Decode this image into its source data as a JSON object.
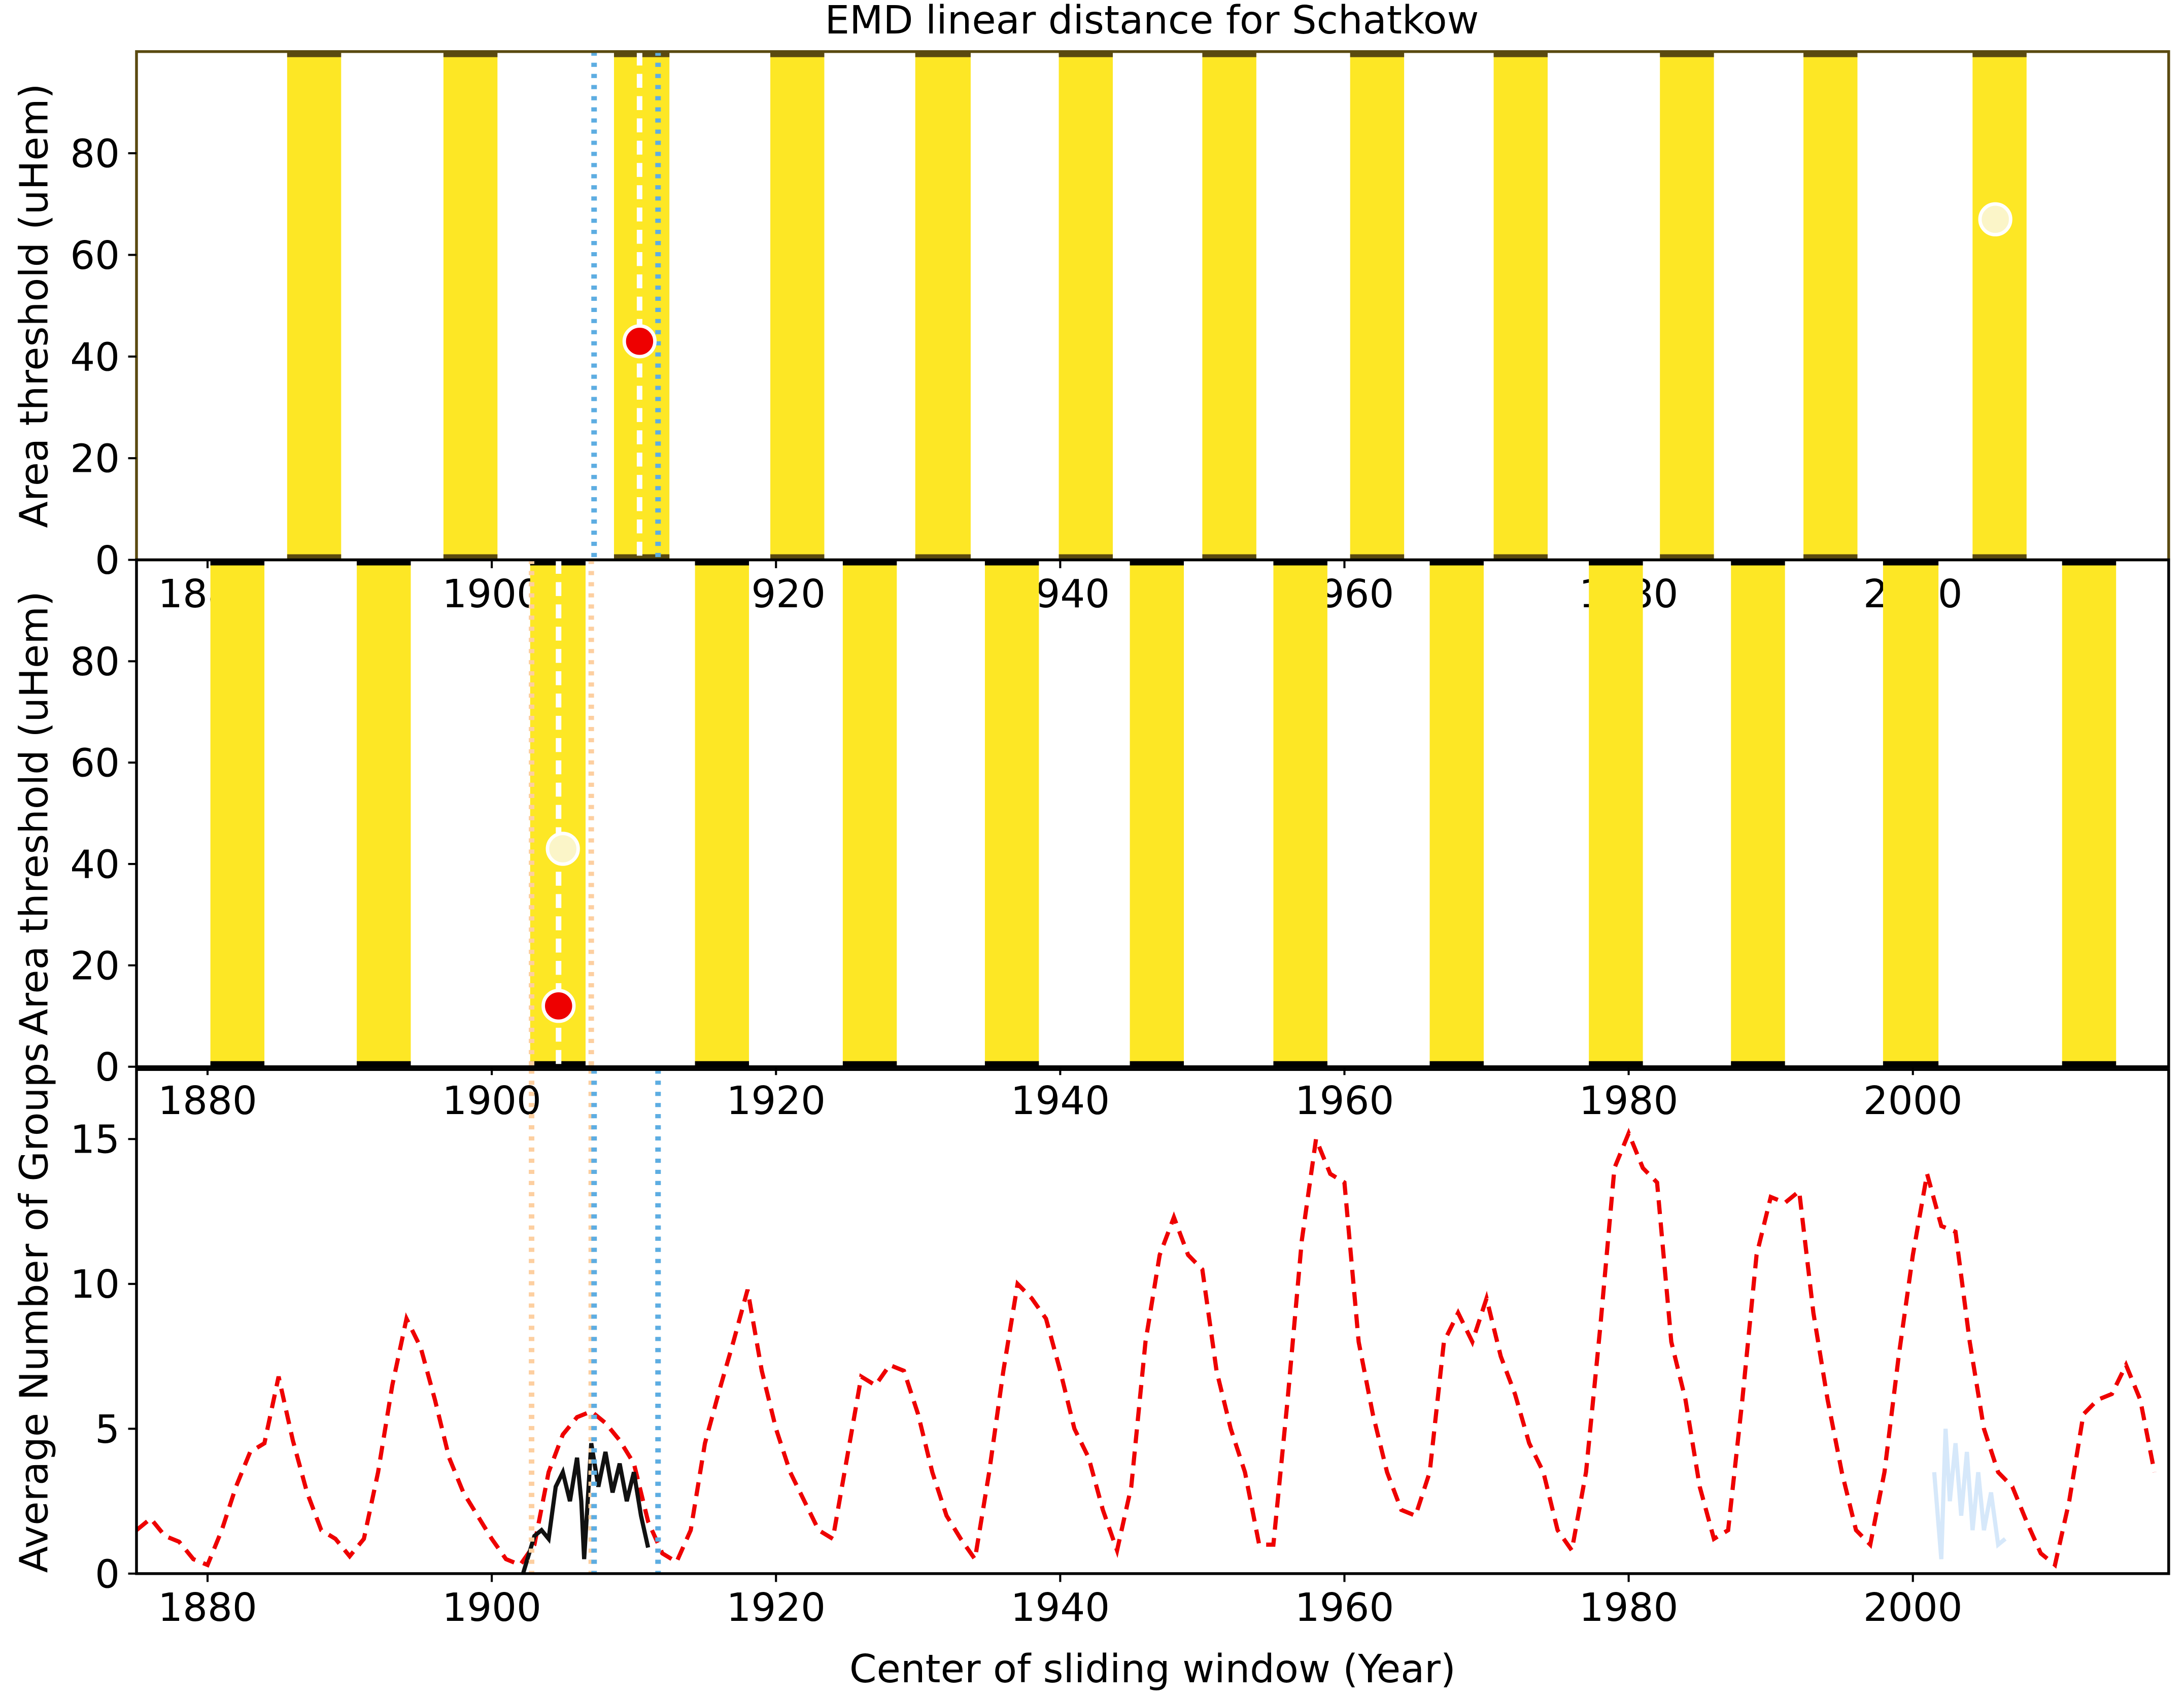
{
  "chart_data": [
    {
      "type": "band",
      "title": "EMD linear distance for Schatkow",
      "y_label": "Area threshold (uHem)",
      "xlim": [
        1875,
        2018
      ],
      "ylim": [
        0,
        100
      ],
      "xticks": [
        1880,
        1900,
        1920,
        1940,
        1960,
        1980,
        2000
      ],
      "yticks": [
        0,
        20,
        40,
        60,
        80
      ],
      "frame_color": "#5a4a10",
      "band_color": "#fde725",
      "bands": [
        [
          1885.6,
          1889.4
        ],
        [
          1896.6,
          1900.4
        ],
        [
          1908.6,
          1912.5
        ],
        [
          1919.6,
          1923.4
        ],
        [
          1929.8,
          1933.7
        ],
        [
          1939.9,
          1943.7
        ],
        [
          1950.0,
          1953.8
        ],
        [
          1960.4,
          1964.2
        ],
        [
          1970.5,
          1974.3
        ],
        [
          1982.2,
          1986.0
        ],
        [
          1992.3,
          1996.1
        ],
        [
          2004.2,
          2008.0
        ]
      ],
      "vlines": [
        {
          "x": 1907.2,
          "color": "#5dade2",
          "style": "dotted"
        },
        {
          "x": 1911.7,
          "color": "#5dade2",
          "style": "dotted"
        },
        {
          "x": 1910.4,
          "color": "#ffffff",
          "style": "dashed"
        }
      ],
      "points": [
        {
          "x": 1910.4,
          "y": 43,
          "color": "#ee0000"
        },
        {
          "x": 2005.8,
          "y": 67,
          "color": "#fbf5c8"
        }
      ]
    },
    {
      "type": "band",
      "y_label": "Area threshold (uHem)",
      "xlim": [
        1875,
        2018
      ],
      "ylim": [
        0,
        100
      ],
      "xticks": [
        1880,
        1900,
        1920,
        1940,
        1960,
        1980,
        2000
      ],
      "yticks": [
        0,
        20,
        40,
        60,
        80
      ],
      "frame_color": "#000000",
      "band_color": "#fde725",
      "bands": [
        [
          1880.2,
          1884.0
        ],
        [
          1890.5,
          1894.3
        ],
        [
          1902.7,
          1906.6
        ],
        [
          1914.3,
          1918.1
        ],
        [
          1924.7,
          1928.5
        ],
        [
          1934.7,
          1938.5
        ],
        [
          1944.9,
          1948.7
        ],
        [
          1955.0,
          1958.8
        ],
        [
          1966.0,
          1969.8
        ],
        [
          1977.2,
          1981.0
        ],
        [
          1987.2,
          1991.0
        ],
        [
          1997.9,
          2001.8
        ],
        [
          2010.5,
          2014.3
        ]
      ],
      "vlines": [
        {
          "x": 1902.8,
          "color": "#fdcfa0",
          "style": "dotted"
        },
        {
          "x": 1907.0,
          "color": "#fdcfa0",
          "style": "dotted"
        },
        {
          "x": 1904.7,
          "color": "#ffffff",
          "style": "dashed"
        }
      ],
      "points": [
        {
          "x": 1905.0,
          "y": 43,
          "color": "#fbf5c8"
        },
        {
          "x": 1904.7,
          "y": 12,
          "color": "#ee0000"
        }
      ]
    },
    {
      "type": "line",
      "x_label": "Center of sliding window (Year)",
      "y_label": "Average Number of Groups",
      "xlim": [
        1875,
        2018
      ],
      "ylim": [
        0,
        17.4
      ],
      "xticks": [
        1880,
        1900,
        1920,
        1940,
        1960,
        1980,
        2000
      ],
      "yticks": [
        0,
        5,
        10,
        15
      ],
      "frame_color": "#000000",
      "vlines": [
        {
          "x": 1902.8,
          "color": "#fdcfa0",
          "style": "dotted"
        },
        {
          "x": 1907.0,
          "color": "#fdcfa0",
          "style": "dotted"
        },
        {
          "x": 1907.2,
          "color": "#5dade2",
          "style": "dotted"
        },
        {
          "x": 1911.7,
          "color": "#5dade2",
          "style": "dotted"
        }
      ],
      "series": [
        {
          "color": "#ee0000",
          "style": "dashed",
          "x": [
            1875,
            1876,
            1877,
            1878,
            1879,
            1880,
            1881,
            1882,
            1883,
            1884,
            1885,
            1886,
            1887,
            1888,
            1889,
            1890,
            1891,
            1892,
            1893,
            1894,
            1895,
            1896,
            1897,
            1898,
            1899,
            1900,
            1901,
            1902,
            1903,
            1904,
            1905,
            1906,
            1907,
            1908,
            1909,
            1910,
            1911,
            1912,
            1913,
            1914,
            1915,
            1916,
            1917,
            1918,
            1919,
            1920,
            1921,
            1922,
            1923,
            1924,
            1925,
            1926,
            1927,
            1928,
            1929,
            1930,
            1931,
            1932,
            1933,
            1934,
            1935,
            1936,
            1937,
            1938,
            1939,
            1940,
            1941,
            1942,
            1943,
            1944,
            1945,
            1946,
            1947,
            1948,
            1949,
            1950,
            1951,
            1952,
            1953,
            1954,
            1955,
            1956,
            1957,
            1958,
            1959,
            1960,
            1961,
            1962,
            1963,
            1964,
            1965,
            1966,
            1967,
            1968,
            1969,
            1970,
            1971,
            1972,
            1973,
            1974,
            1975,
            1976,
            1977,
            1978,
            1979,
            1980,
            1981,
            1982,
            1983,
            1984,
            1985,
            1986,
            1987,
            1988,
            1989,
            1990,
            1991,
            1992,
            1993,
            1994,
            1995,
            1996,
            1997,
            1998,
            1999,
            2000,
            2001,
            2002,
            2003,
            2004,
            2005,
            2006,
            2007,
            2008,
            2009,
            2010,
            2011,
            2012,
            2013,
            2014,
            2015,
            2016,
            2017
          ],
          "values": [
            1.5,
            1.9,
            1.3,
            1.1,
            0.5,
            0.3,
            1.5,
            3.0,
            4.2,
            4.5,
            6.8,
            4.6,
            2.8,
            1.5,
            1.2,
            0.6,
            1.2,
            3.5,
            6.5,
            8.8,
            7.8,
            6.0,
            4.0,
            2.8,
            2.0,
            1.2,
            0.5,
            0.3,
            1.0,
            3.5,
            4.8,
            5.4,
            5.6,
            5.2,
            4.6,
            3.8,
            1.8,
            0.7,
            0.4,
            1.5,
            4.5,
            6.3,
            8.0,
            9.8,
            7.0,
            5.0,
            3.5,
            2.5,
            1.5,
            1.2,
            4.0,
            6.8,
            6.5,
            7.2,
            7.0,
            5.5,
            3.5,
            2.0,
            1.2,
            0.5,
            3.5,
            7.0,
            10.0,
            9.5,
            8.8,
            7.0,
            5.0,
            4.0,
            2.2,
            0.8,
            3.0,
            8.0,
            11.0,
            12.3,
            11.0,
            10.5,
            7.0,
            5.0,
            3.5,
            1.0,
            1.0,
            6.0,
            11.5,
            15.0,
            13.8,
            13.5,
            8.0,
            5.5,
            3.5,
            2.2,
            2.0,
            3.5,
            8.0,
            9.0,
            8.0,
            9.5,
            7.5,
            6.2,
            4.5,
            3.5,
            1.5,
            0.8,
            3.5,
            8.5,
            14.0,
            15.2,
            14.0,
            13.5,
            8.0,
            6.0,
            3.0,
            1.2,
            1.5,
            6.0,
            11.0,
            13.0,
            12.8,
            13.2,
            9.0,
            6.0,
            3.5,
            1.5,
            1.0,
            3.5,
            7.5,
            11.0,
            13.8,
            12.0,
            11.8,
            8.0,
            5.0,
            3.5,
            3.0,
            1.8,
            0.7,
            0.3,
            2.5,
            5.5,
            6.0,
            6.2,
            7.2,
            6.0,
            3.5
          ]
        },
        {
          "color": "#111111",
          "style": "solid",
          "x": [
            1902.2,
            1903,
            1903.5,
            1904,
            1904.5,
            1905,
            1905.5,
            1906,
            1906.3,
            1906.5,
            1907,
            1907.5,
            1908,
            1908.5,
            1909,
            1909.5,
            1910,
            1910.5,
            1911
          ],
          "values": [
            0.0,
            1.3,
            1.5,
            1.2,
            3.0,
            3.5,
            2.5,
            4.0,
            2.5,
            0.5,
            4.5,
            3.0,
            4.2,
            2.8,
            3.8,
            2.5,
            3.5,
            2.0,
            0.9
          ]
        },
        {
          "color": "#d6e8fa",
          "style": "solid",
          "x": [
            2001.5,
            2002,
            2002.3,
            2002.6,
            2003,
            2003.4,
            2003.8,
            2004.2,
            2004.6,
            2005,
            2005.5,
            2006,
            2006.5
          ],
          "values": [
            3.5,
            0.5,
            5.0,
            2.5,
            4.5,
            2.0,
            4.2,
            1.5,
            3.5,
            1.5,
            2.8,
            1.0,
            1.2
          ]
        }
      ]
    }
  ]
}
